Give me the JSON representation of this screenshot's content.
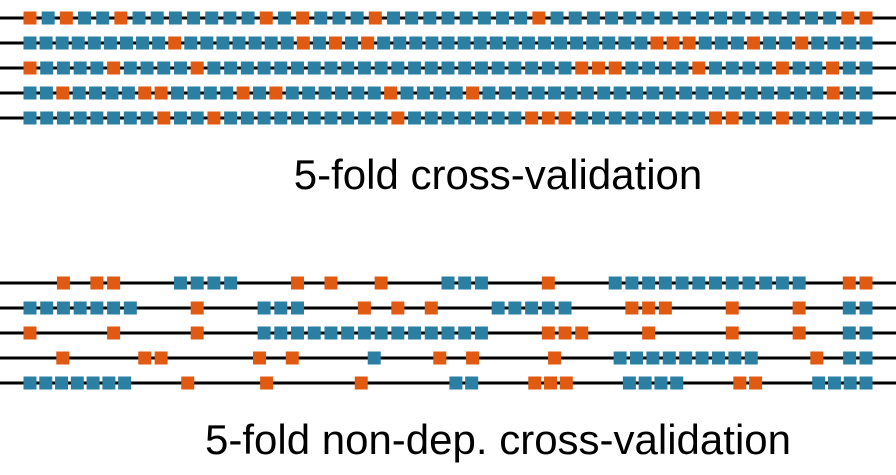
{
  "colors": {
    "train": "#2a7fa3",
    "test": "#e05a12",
    "line": "#000000"
  },
  "panels": [
    {
      "id": "standard",
      "caption": "5-fold cross-validation",
      "folds": [
        "TOTOOTOOOOOOOTOTOOOTOOOOOOOOTOOOOOOOOOOOOOOOOTT",
        "OOOOOOOOOTOOOOOOOTOTOTOOOOOOOOOOOOOOOOOTTTOOOTOOTOOOO",
        "TOOOOTOOOOTOOOOOOOOOOOOOOOOOOOOOOTTTOOOOTOOOOTOOTOO",
        "OOTOOOOTTOOOOTOTOOOOOOTOOOOTOOOOOOOOOOOOOOOOOOOOOTOO",
        "OOOOOOOOTOOTOOOOOOOOOOTOOOOOOOTTTOOOOOOOOTTOOTOOOOO"
      ]
    },
    {
      "id": "non_dependent",
      "caption": "5-fold non-dep. cross-validation",
      "folds": [
        "__T_TT___OOOO___T_T__T___OOO___T___OOOOOOOOOOOO__TT",
        "OOOOOOO___T___OOO___T_T_T___OOOOO___TTT___T___T__OO",
        "T____T____T___OOOOOOOOOOOOOO___TTT___T____T___T__OO",
        "__T____TT_____T_T____O___T_T____T___OOOOOOOOO___T_OO",
        "OOOOOOO___T____T_____T_____OO___TTT___OOOO___TT___OOOO"
      ]
    }
  ]
}
